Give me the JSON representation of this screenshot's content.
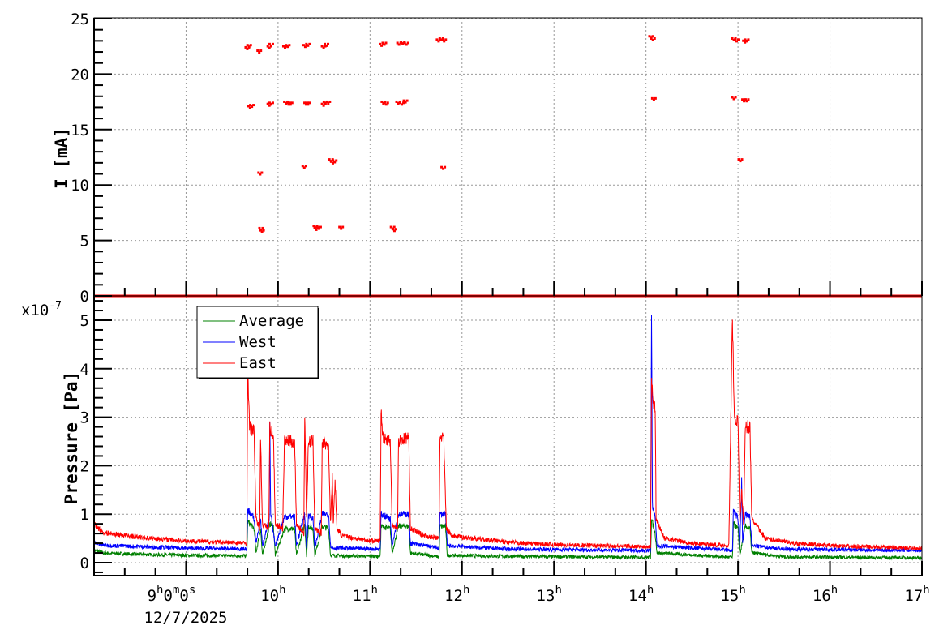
{
  "chart_data": [
    {
      "type": "scatter",
      "ylabel": "I [mA]",
      "ylim": [
        0,
        25
      ],
      "xlim_hours": [
        8,
        17
      ],
      "yticks": [
        "0",
        "5",
        "10",
        "15",
        "20",
        "25"
      ],
      "grid": true,
      "color": "#ff0000",
      "baseline_value": 0,
      "points": [
        [
          9.67,
          22.3
        ],
        [
          9.69,
          22.5
        ],
        [
          9.7,
          17.0
        ],
        [
          9.72,
          17.1
        ],
        [
          9.8,
          22.0
        ],
        [
          9.81,
          11.0
        ],
        [
          9.82,
          6.0
        ],
        [
          9.83,
          5.8
        ],
        [
          9.91,
          22.4
        ],
        [
          9.93,
          22.6
        ],
        [
          9.91,
          17.2
        ],
        [
          9.93,
          17.3
        ],
        [
          10.08,
          22.4
        ],
        [
          10.11,
          22.5
        ],
        [
          10.09,
          17.4
        ],
        [
          10.12,
          17.3
        ],
        [
          10.14,
          17.3
        ],
        [
          10.3,
          22.5
        ],
        [
          10.33,
          22.6
        ],
        [
          10.31,
          17.3
        ],
        [
          10.33,
          17.3
        ],
        [
          10.29,
          11.6
        ],
        [
          10.41,
          6.2
        ],
        [
          10.42,
          6.0
        ],
        [
          10.45,
          6.1
        ],
        [
          10.5,
          22.4
        ],
        [
          10.53,
          22.6
        ],
        [
          10.5,
          17.2
        ],
        [
          10.52,
          17.4
        ],
        [
          10.55,
          17.4
        ],
        [
          10.58,
          12.2
        ],
        [
          10.6,
          12.0
        ],
        [
          10.62,
          12.1
        ],
        [
          10.69,
          6.1
        ],
        [
          11.13,
          22.6
        ],
        [
          11.16,
          22.7
        ],
        [
          11.15,
          17.4
        ],
        [
          11.18,
          17.3
        ],
        [
          11.25,
          6.1
        ],
        [
          11.27,
          5.9
        ],
        [
          11.32,
          22.7
        ],
        [
          11.36,
          22.8
        ],
        [
          11.4,
          22.7
        ],
        [
          11.31,
          17.4
        ],
        [
          11.35,
          17.3
        ],
        [
          11.39,
          17.5
        ],
        [
          11.75,
          23.0
        ],
        [
          11.78,
          23.1
        ],
        [
          11.81,
          23.0
        ],
        [
          11.8,
          11.5
        ],
        [
          14.06,
          23.3
        ],
        [
          14.08,
          23.1
        ],
        [
          14.09,
          17.7
        ],
        [
          14.96,
          23.1
        ],
        [
          14.99,
          23.0
        ],
        [
          14.96,
          17.8
        ],
        [
          15.03,
          12.2
        ],
        [
          15.08,
          22.9
        ],
        [
          15.1,
          23.0
        ],
        [
          15.07,
          17.6
        ],
        [
          15.1,
          17.6
        ]
      ]
    },
    {
      "type": "line",
      "ylabel": "Pressure [Pa]",
      "y_multiplier": "x10",
      "y_multiplier_exp": "-7",
      "ylim": [
        0,
        5
      ],
      "yticks": [
        "0",
        "1",
        "2",
        "3",
        "4",
        "5"
      ],
      "xticks": [
        {
          "main": "9",
          "sup": "h",
          "extra": "0",
          "sup2": "m",
          "extra2": "0",
          "sup3": "s"
        },
        {
          "main": "10",
          "sup": "h"
        },
        {
          "main": "11",
          "sup": "h"
        },
        {
          "main": "12",
          "sup": "h"
        },
        {
          "main": "13",
          "sup": "h"
        },
        {
          "main": "14",
          "sup": "h"
        },
        {
          "main": "15",
          "sup": "h"
        },
        {
          "main": "16",
          "sup": "h"
        },
        {
          "main": "17",
          "sup": "h"
        }
      ],
      "date_label": "12/7/2025",
      "xlim_hours": [
        8,
        17
      ],
      "grid": true,
      "legend_placement": "top-left",
      "series": [
        {
          "name": "Average",
          "color": "#008000",
          "points": [
            [
              8.0,
              0.26
            ],
            [
              8.1,
              0.2
            ],
            [
              8.5,
              0.17
            ],
            [
              9.0,
              0.15
            ],
            [
              9.66,
              0.14
            ],
            [
              9.67,
              0.85
            ],
            [
              9.74,
              0.7
            ],
            [
              9.76,
              0.2
            ],
            [
              9.81,
              0.7
            ],
            [
              9.83,
              0.15
            ],
            [
              9.91,
              0.8
            ],
            [
              9.95,
              0.75
            ],
            [
              9.97,
              0.15
            ],
            [
              10.07,
              0.7
            ],
            [
              10.18,
              0.7
            ],
            [
              10.2,
              0.15
            ],
            [
              10.29,
              0.8
            ],
            [
              10.31,
              0.15
            ],
            [
              10.33,
              0.75
            ],
            [
              10.38,
              0.7
            ],
            [
              10.4,
              0.15
            ],
            [
              10.48,
              0.75
            ],
            [
              10.55,
              0.7
            ],
            [
              10.57,
              0.15
            ],
            [
              10.7,
              0.14
            ],
            [
              11.11,
              0.13
            ],
            [
              11.12,
              0.75
            ],
            [
              11.22,
              0.7
            ],
            [
              11.24,
              0.2
            ],
            [
              11.31,
              0.75
            ],
            [
              11.42,
              0.75
            ],
            [
              11.44,
              0.2
            ],
            [
              11.75,
              0.12
            ],
            [
              11.76,
              0.75
            ],
            [
              11.82,
              0.75
            ],
            [
              11.84,
              0.15
            ],
            [
              12.5,
              0.13
            ],
            [
              14.05,
              0.11
            ],
            [
              14.06,
              0.9
            ],
            [
              14.1,
              0.6
            ],
            [
              14.12,
              0.2
            ],
            [
              14.94,
              0.11
            ],
            [
              14.95,
              0.8
            ],
            [
              15.0,
              0.7
            ],
            [
              15.02,
              0.15
            ],
            [
              15.08,
              0.75
            ],
            [
              15.13,
              0.7
            ],
            [
              15.15,
              0.2
            ],
            [
              15.5,
              0.12
            ],
            [
              17.0,
              0.1
            ]
          ]
        },
        {
          "name": "West",
          "color": "#0000ff",
          "points": [
            [
              8.0,
              0.42
            ],
            [
              8.1,
              0.36
            ],
            [
              8.5,
              0.33
            ],
            [
              9.0,
              0.3
            ],
            [
              9.66,
              0.28
            ],
            [
              9.67,
              1.1
            ],
            [
              9.74,
              0.9
            ],
            [
              9.76,
              0.4
            ],
            [
              9.81,
              0.9
            ],
            [
              9.83,
              0.35
            ],
            [
              9.905,
              0.9
            ],
            [
              9.91,
              2.9
            ],
            [
              9.92,
              1.0
            ],
            [
              9.97,
              0.35
            ],
            [
              10.07,
              0.95
            ],
            [
              10.18,
              0.95
            ],
            [
              10.2,
              0.35
            ],
            [
              10.29,
              1.0
            ],
            [
              10.31,
              0.3
            ],
            [
              10.33,
              1.0
            ],
            [
              10.38,
              0.9
            ],
            [
              10.4,
              0.3
            ],
            [
              10.48,
              1.0
            ],
            [
              10.55,
              1.0
            ],
            [
              10.57,
              0.35
            ],
            [
              10.6,
              0.3
            ],
            [
              10.7,
              0.3
            ],
            [
              11.11,
              0.28
            ],
            [
              11.12,
              1.0
            ],
            [
              11.22,
              0.9
            ],
            [
              11.24,
              0.35
            ],
            [
              11.31,
              1.0
            ],
            [
              11.42,
              1.0
            ],
            [
              11.44,
              0.4
            ],
            [
              11.75,
              0.3
            ],
            [
              11.76,
              1.0
            ],
            [
              11.82,
              1.0
            ],
            [
              11.84,
              0.35
            ],
            [
              12.5,
              0.28
            ],
            [
              14.05,
              0.25
            ],
            [
              14.06,
              5.15
            ],
            [
              14.07,
              1.2
            ],
            [
              14.1,
              0.9
            ],
            [
              14.12,
              0.35
            ],
            [
              14.94,
              0.25
            ],
            [
              14.95,
              1.1
            ],
            [
              15.0,
              0.9
            ],
            [
              15.02,
              0.35
            ],
            [
              15.04,
              1.7
            ],
            [
              15.05,
              0.4
            ],
            [
              15.08,
              1.0
            ],
            [
              15.13,
              0.95
            ],
            [
              15.15,
              0.35
            ],
            [
              15.5,
              0.28
            ],
            [
              17.0,
              0.25
            ]
          ]
        },
        {
          "name": "East",
          "color": "#ff0000",
          "points": [
            [
              8.0,
              0.8
            ],
            [
              8.1,
              0.62
            ],
            [
              8.5,
              0.52
            ],
            [
              9.0,
              0.45
            ],
            [
              9.66,
              0.4
            ],
            [
              9.67,
              4.1
            ],
            [
              9.69,
              2.8
            ],
            [
              9.74,
              2.7
            ],
            [
              9.76,
              0.9
            ],
            [
              9.8,
              0.7
            ],
            [
              9.81,
              2.6
            ],
            [
              9.83,
              0.8
            ],
            [
              9.9,
              0.7
            ],
            [
              9.91,
              2.8
            ],
            [
              9.95,
              2.6
            ],
            [
              9.97,
              0.8
            ],
            [
              10.05,
              0.7
            ],
            [
              10.07,
              2.5
            ],
            [
              10.18,
              2.5
            ],
            [
              10.2,
              0.8
            ],
            [
              10.28,
              0.6
            ],
            [
              10.29,
              3.1
            ],
            [
              10.31,
              0.9
            ],
            [
              10.33,
              2.5
            ],
            [
              10.38,
              2.5
            ],
            [
              10.4,
              0.7
            ],
            [
              10.47,
              0.6
            ],
            [
              10.48,
              2.5
            ],
            [
              10.55,
              2.4
            ],
            [
              10.57,
              0.8
            ],
            [
              10.59,
              1.8
            ],
            [
              10.6,
              0.8
            ],
            [
              10.62,
              1.7
            ],
            [
              10.64,
              0.7
            ],
            [
              10.7,
              0.55
            ],
            [
              11.0,
              0.45
            ],
            [
              11.11,
              0.45
            ],
            [
              11.12,
              3.1
            ],
            [
              11.14,
              2.6
            ],
            [
              11.22,
              2.5
            ],
            [
              11.24,
              0.8
            ],
            [
              11.3,
              0.7
            ],
            [
              11.31,
              2.5
            ],
            [
              11.42,
              2.6
            ],
            [
              11.44,
              0.7
            ],
            [
              11.6,
              0.55
            ],
            [
              11.75,
              0.5
            ],
            [
              11.76,
              2.6
            ],
            [
              11.8,
              2.6
            ],
            [
              11.83,
              0.7
            ],
            [
              11.9,
              0.55
            ],
            [
              12.5,
              0.42
            ],
            [
              13.0,
              0.37
            ],
            [
              13.5,
              0.35
            ],
            [
              14.05,
              0.33
            ],
            [
              14.06,
              3.9
            ],
            [
              14.08,
              3.3
            ],
            [
              14.1,
              3.2
            ],
            [
              14.11,
              0.9
            ],
            [
              14.2,
              0.5
            ],
            [
              14.5,
              0.4
            ],
            [
              14.9,
              0.35
            ],
            [
              14.94,
              5.1
            ],
            [
              14.96,
              3.0
            ],
            [
              15.0,
              2.9
            ],
            [
              15.02,
              0.8
            ],
            [
              15.04,
              1.5
            ],
            [
              15.06,
              0.8
            ],
            [
              15.08,
              2.8
            ],
            [
              15.13,
              2.8
            ],
            [
              15.15,
              0.9
            ],
            [
              15.3,
              0.5
            ],
            [
              15.6,
              0.4
            ],
            [
              16.0,
              0.35
            ],
            [
              16.5,
              0.32
            ],
            [
              17.0,
              0.3
            ]
          ]
        }
      ]
    }
  ]
}
